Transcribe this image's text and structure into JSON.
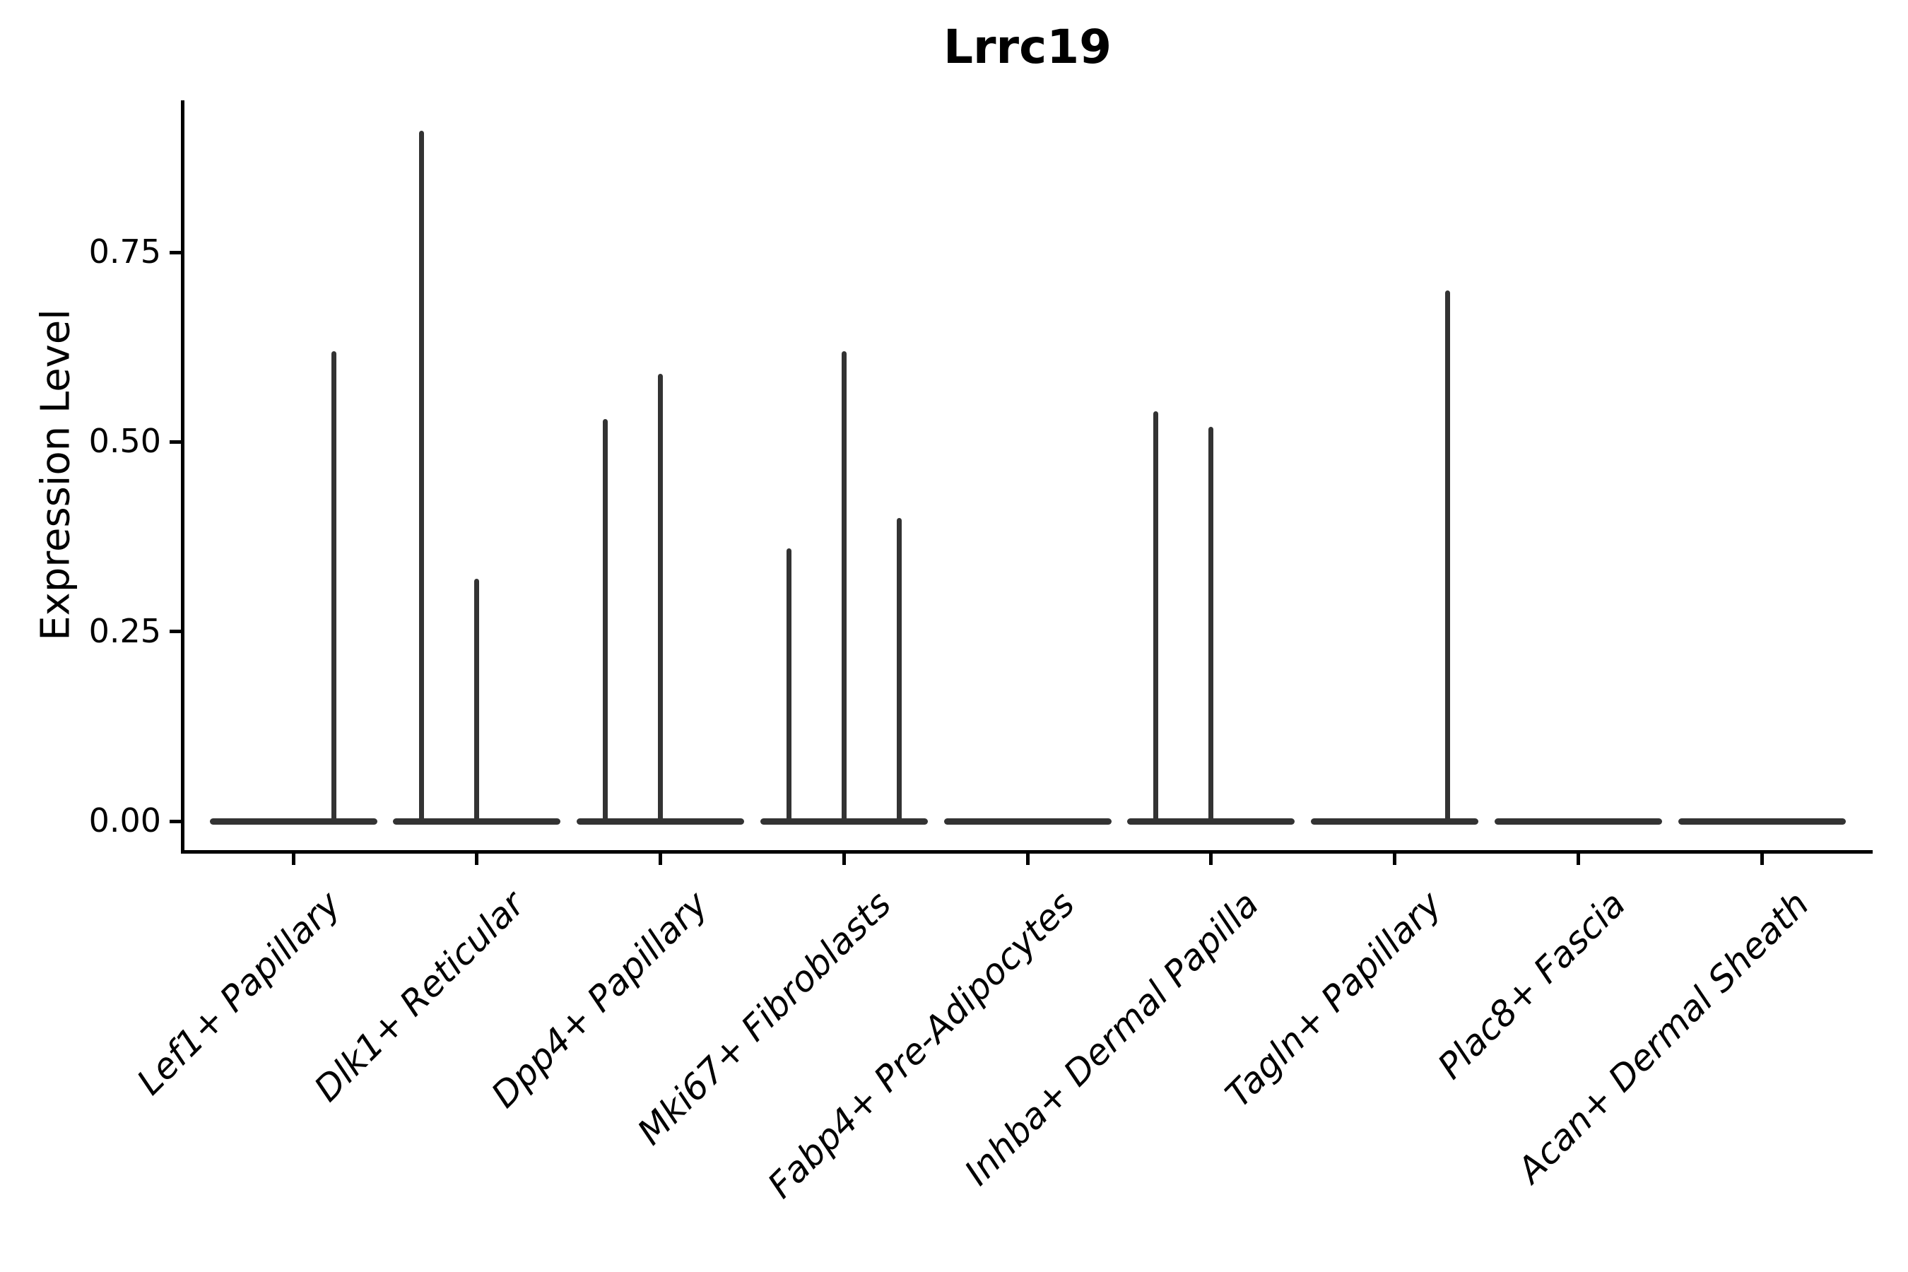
{
  "figure": {
    "title": "Lrrc19",
    "background_color": "#ffffff",
    "ink_color": "#333333",
    "axis_color": "#000000"
  },
  "chart_data": {
    "type": "violin",
    "title": "Lrrc19",
    "xlabel": "",
    "ylabel": "Expression Level",
    "ylim": [
      -0.04,
      0.95
    ],
    "yticks": [
      "0.00",
      "0.25",
      "0.50",
      "0.75"
    ],
    "ytick_values": [
      0.0,
      0.25,
      0.5,
      0.75
    ],
    "grid": false,
    "legend": "none",
    "violin_width": 0.9,
    "x_label_rotation_deg": 45,
    "categories": [
      "Lef1+ Papillary",
      "Dlk1+ Reticular",
      "Dpp4+ Papillary",
      "Mki67+ Fibroblasts",
      "Fabp4+ Pre-Adipocytes",
      "Inhba+ Dermal Papilla",
      "Tagln+ Papillary",
      "Plac8+ Fascia",
      "Acan+ Dermal Sheath"
    ],
    "violins": [
      {
        "category": "Lef1+ Papillary",
        "baseline_value": 0.0,
        "spikes": [
          {
            "x_offset": 0.22,
            "value": 0.62
          }
        ]
      },
      {
        "category": "Dlk1+ Reticular",
        "baseline_value": 0.0,
        "spikes": [
          {
            "x_offset": -0.3,
            "value": 0.91
          },
          {
            "x_offset": 0.0,
            "value": 0.32
          }
        ]
      },
      {
        "category": "Dpp4+ Papillary",
        "baseline_value": 0.0,
        "spikes": [
          {
            "x_offset": -0.3,
            "value": 0.53
          },
          {
            "x_offset": 0.0,
            "value": 0.59
          }
        ]
      },
      {
        "category": "Mki67+ Fibroblasts",
        "baseline_value": 0.0,
        "spikes": [
          {
            "x_offset": -0.3,
            "value": 0.36
          },
          {
            "x_offset": 0.0,
            "value": 0.62
          },
          {
            "x_offset": 0.3,
            "value": 0.4
          }
        ]
      },
      {
        "category": "Fabp4+ Pre-Adipocytes",
        "baseline_value": 0.0,
        "spikes": []
      },
      {
        "category": "Inhba+ Dermal Papilla",
        "baseline_value": 0.0,
        "spikes": [
          {
            "x_offset": -0.3,
            "value": 0.54
          },
          {
            "x_offset": 0.0,
            "value": 0.52
          }
        ]
      },
      {
        "category": "Tagln+ Papillary",
        "baseline_value": 0.0,
        "spikes": [
          {
            "x_offset": 0.29,
            "value": 0.7
          }
        ]
      },
      {
        "category": "Plac8+ Fascia",
        "baseline_value": 0.0,
        "spikes": []
      },
      {
        "category": "Acan+ Dermal Sheath",
        "baseline_value": 0.0,
        "spikes": []
      }
    ]
  }
}
